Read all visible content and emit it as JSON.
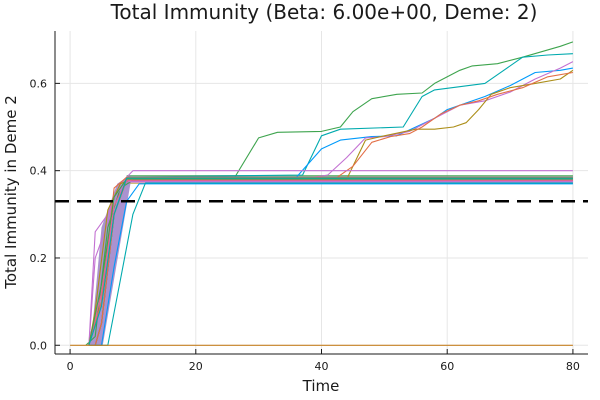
{
  "chart_data": {
    "type": "line",
    "title": "Total Immunity (Beta: 6.00e+00, Deme: 2)",
    "xlabel": "Time",
    "ylabel": "Total Immunity in Deme 2",
    "xlim": [
      -2.4,
      82.4
    ],
    "ylim": [
      -0.02,
      0.72
    ],
    "xticks": [
      0,
      20,
      40,
      60,
      80
    ],
    "xtick_labels": [
      "0",
      "20",
      "40",
      "60",
      "80"
    ],
    "yticks": [
      0.0,
      0.2,
      0.4,
      0.6
    ],
    "ytick_labels": [
      "0.0",
      "0.2",
      "0.4",
      "0.6"
    ],
    "grid": true,
    "legend": "none",
    "reference_line": {
      "y": 0.33,
      "style": "dashed",
      "color": "#000000"
    },
    "palette": [
      "#009AFA",
      "#E36F47",
      "#3EA44E",
      "#C371D2",
      "#AC8E18",
      "#00AAAE",
      "#ED5E93",
      "#C68225"
    ],
    "plateau_band": {
      "y_min": 0.37,
      "y_max": 0.39,
      "x_start": 9,
      "x_end": 80
    },
    "series": [
      {
        "color": "#3EA44E",
        "x": [
          3,
          4,
          5,
          7,
          9,
          26,
          30,
          33,
          40,
          43,
          45,
          48,
          52,
          56,
          58,
          62,
          64,
          68,
          72,
          78,
          80
        ],
        "y": [
          0,
          0,
          0.05,
          0.3,
          0.38,
          0.38,
          0.475,
          0.488,
          0.49,
          0.5,
          0.535,
          0.565,
          0.575,
          0.578,
          0.6,
          0.63,
          0.64,
          0.645,
          0.66,
          0.685,
          0.695
        ]
      },
      {
        "color": "#00AAAE",
        "x": [
          3,
          4,
          5,
          7,
          9,
          37,
          40,
          43,
          53,
          56,
          58,
          66,
          69,
          72,
          76,
          80
        ],
        "y": [
          0,
          0,
          0.05,
          0.3,
          0.385,
          0.39,
          0.48,
          0.495,
          0.5,
          0.57,
          0.585,
          0.6,
          0.63,
          0.66,
          0.665,
          0.668
        ]
      },
      {
        "color": "#009AFA",
        "x": [
          3,
          4,
          5,
          7,
          9,
          36,
          40,
          43,
          48,
          52,
          55,
          58,
          60,
          63,
          66,
          70,
          74,
          78,
          80
        ],
        "y": [
          0,
          0,
          0.05,
          0.3,
          0.385,
          0.385,
          0.45,
          0.47,
          0.478,
          0.48,
          0.5,
          0.52,
          0.54,
          0.555,
          0.57,
          0.595,
          0.625,
          0.63,
          0.635
        ]
      },
      {
        "color": "#C371D2",
        "x": [
          3,
          4,
          5,
          7,
          9,
          38,
          41,
          44,
          47,
          50,
          54,
          58,
          62,
          66,
          70,
          74,
          78,
          80
        ],
        "y": [
          0,
          0,
          0.05,
          0.3,
          0.383,
          0.383,
          0.39,
          0.43,
          0.475,
          0.478,
          0.49,
          0.52,
          0.55,
          0.56,
          0.58,
          0.61,
          0.635,
          0.65
        ]
      },
      {
        "color": "#AC8E18",
        "x": [
          3,
          4,
          5,
          7,
          9,
          44,
          47,
          50,
          55,
          58,
          61,
          63,
          65,
          67,
          70,
          74,
          78,
          80
        ],
        "y": [
          0,
          0,
          0.05,
          0.3,
          0.38,
          0.38,
          0.47,
          0.48,
          0.495,
          0.495,
          0.5,
          0.51,
          0.54,
          0.575,
          0.59,
          0.6,
          0.61,
          0.63
        ]
      },
      {
        "color": "#E36F47",
        "x": [
          3,
          4,
          5,
          7,
          9,
          42,
          45,
          48,
          51,
          54,
          56,
          59,
          62,
          65,
          68,
          72,
          76,
          80
        ],
        "y": [
          0,
          0,
          0.05,
          0.3,
          0.38,
          0.38,
          0.41,
          0.465,
          0.478,
          0.485,
          0.5,
          0.53,
          0.55,
          0.56,
          0.575,
          0.59,
          0.615,
          0.625
        ]
      },
      {
        "color": "#009AFA",
        "x": [
          3,
          5,
          7,
          9,
          11,
          80
        ],
        "y": [
          0,
          0,
          0.18,
          0.33,
          0.37,
          0.37
        ]
      },
      {
        "color": "#00AAAE",
        "x": [
          4,
          6,
          8,
          10,
          12,
          80
        ],
        "y": [
          0,
          0,
          0.15,
          0.3,
          0.372,
          0.372
        ]
      },
      {
        "color": "#3EA44E",
        "x": [
          2.5,
          4,
          6,
          8,
          10,
          80
        ],
        "y": [
          0,
          0.02,
          0.27,
          0.36,
          0.378,
          0.378
        ]
      },
      {
        "color": "#C371D2",
        "x": [
          3,
          4,
          6,
          7,
          9,
          80
        ],
        "y": [
          0,
          0.2,
          0.28,
          0.34,
          0.375,
          0.375
        ]
      },
      {
        "color": "#C371D2",
        "x": [
          3,
          4,
          6,
          8,
          10,
          80
        ],
        "y": [
          0,
          0.26,
          0.3,
          0.37,
          0.4,
          0.4
        ]
      },
      {
        "color": "#E36F47",
        "x": [
          3,
          5,
          7,
          9,
          80
        ],
        "y": [
          0,
          0.1,
          0.36,
          0.385,
          0.385
        ]
      },
      {
        "color": "#AC8E18",
        "x": [
          3,
          4,
          6,
          8,
          10,
          80
        ],
        "y": [
          0,
          0.08,
          0.31,
          0.37,
          0.382,
          0.382
        ]
      },
      {
        "color": "#ED5E93",
        "x": [
          3,
          5,
          7,
          9,
          80
        ],
        "y": [
          0,
          0.12,
          0.32,
          0.378,
          0.378
        ]
      },
      {
        "color": "#3EA44E",
        "x": [
          3,
          5,
          7,
          9,
          80
        ],
        "y": [
          0,
          0.14,
          0.34,
          0.381,
          0.381
        ]
      },
      {
        "color": "#00AAAE",
        "x": [
          3,
          5,
          7,
          9,
          80
        ],
        "y": [
          0,
          0.09,
          0.3,
          0.383,
          0.383
        ]
      },
      {
        "color": "#C68225",
        "x": [
          0,
          80
        ],
        "y": [
          0,
          0
        ]
      }
    ]
  }
}
